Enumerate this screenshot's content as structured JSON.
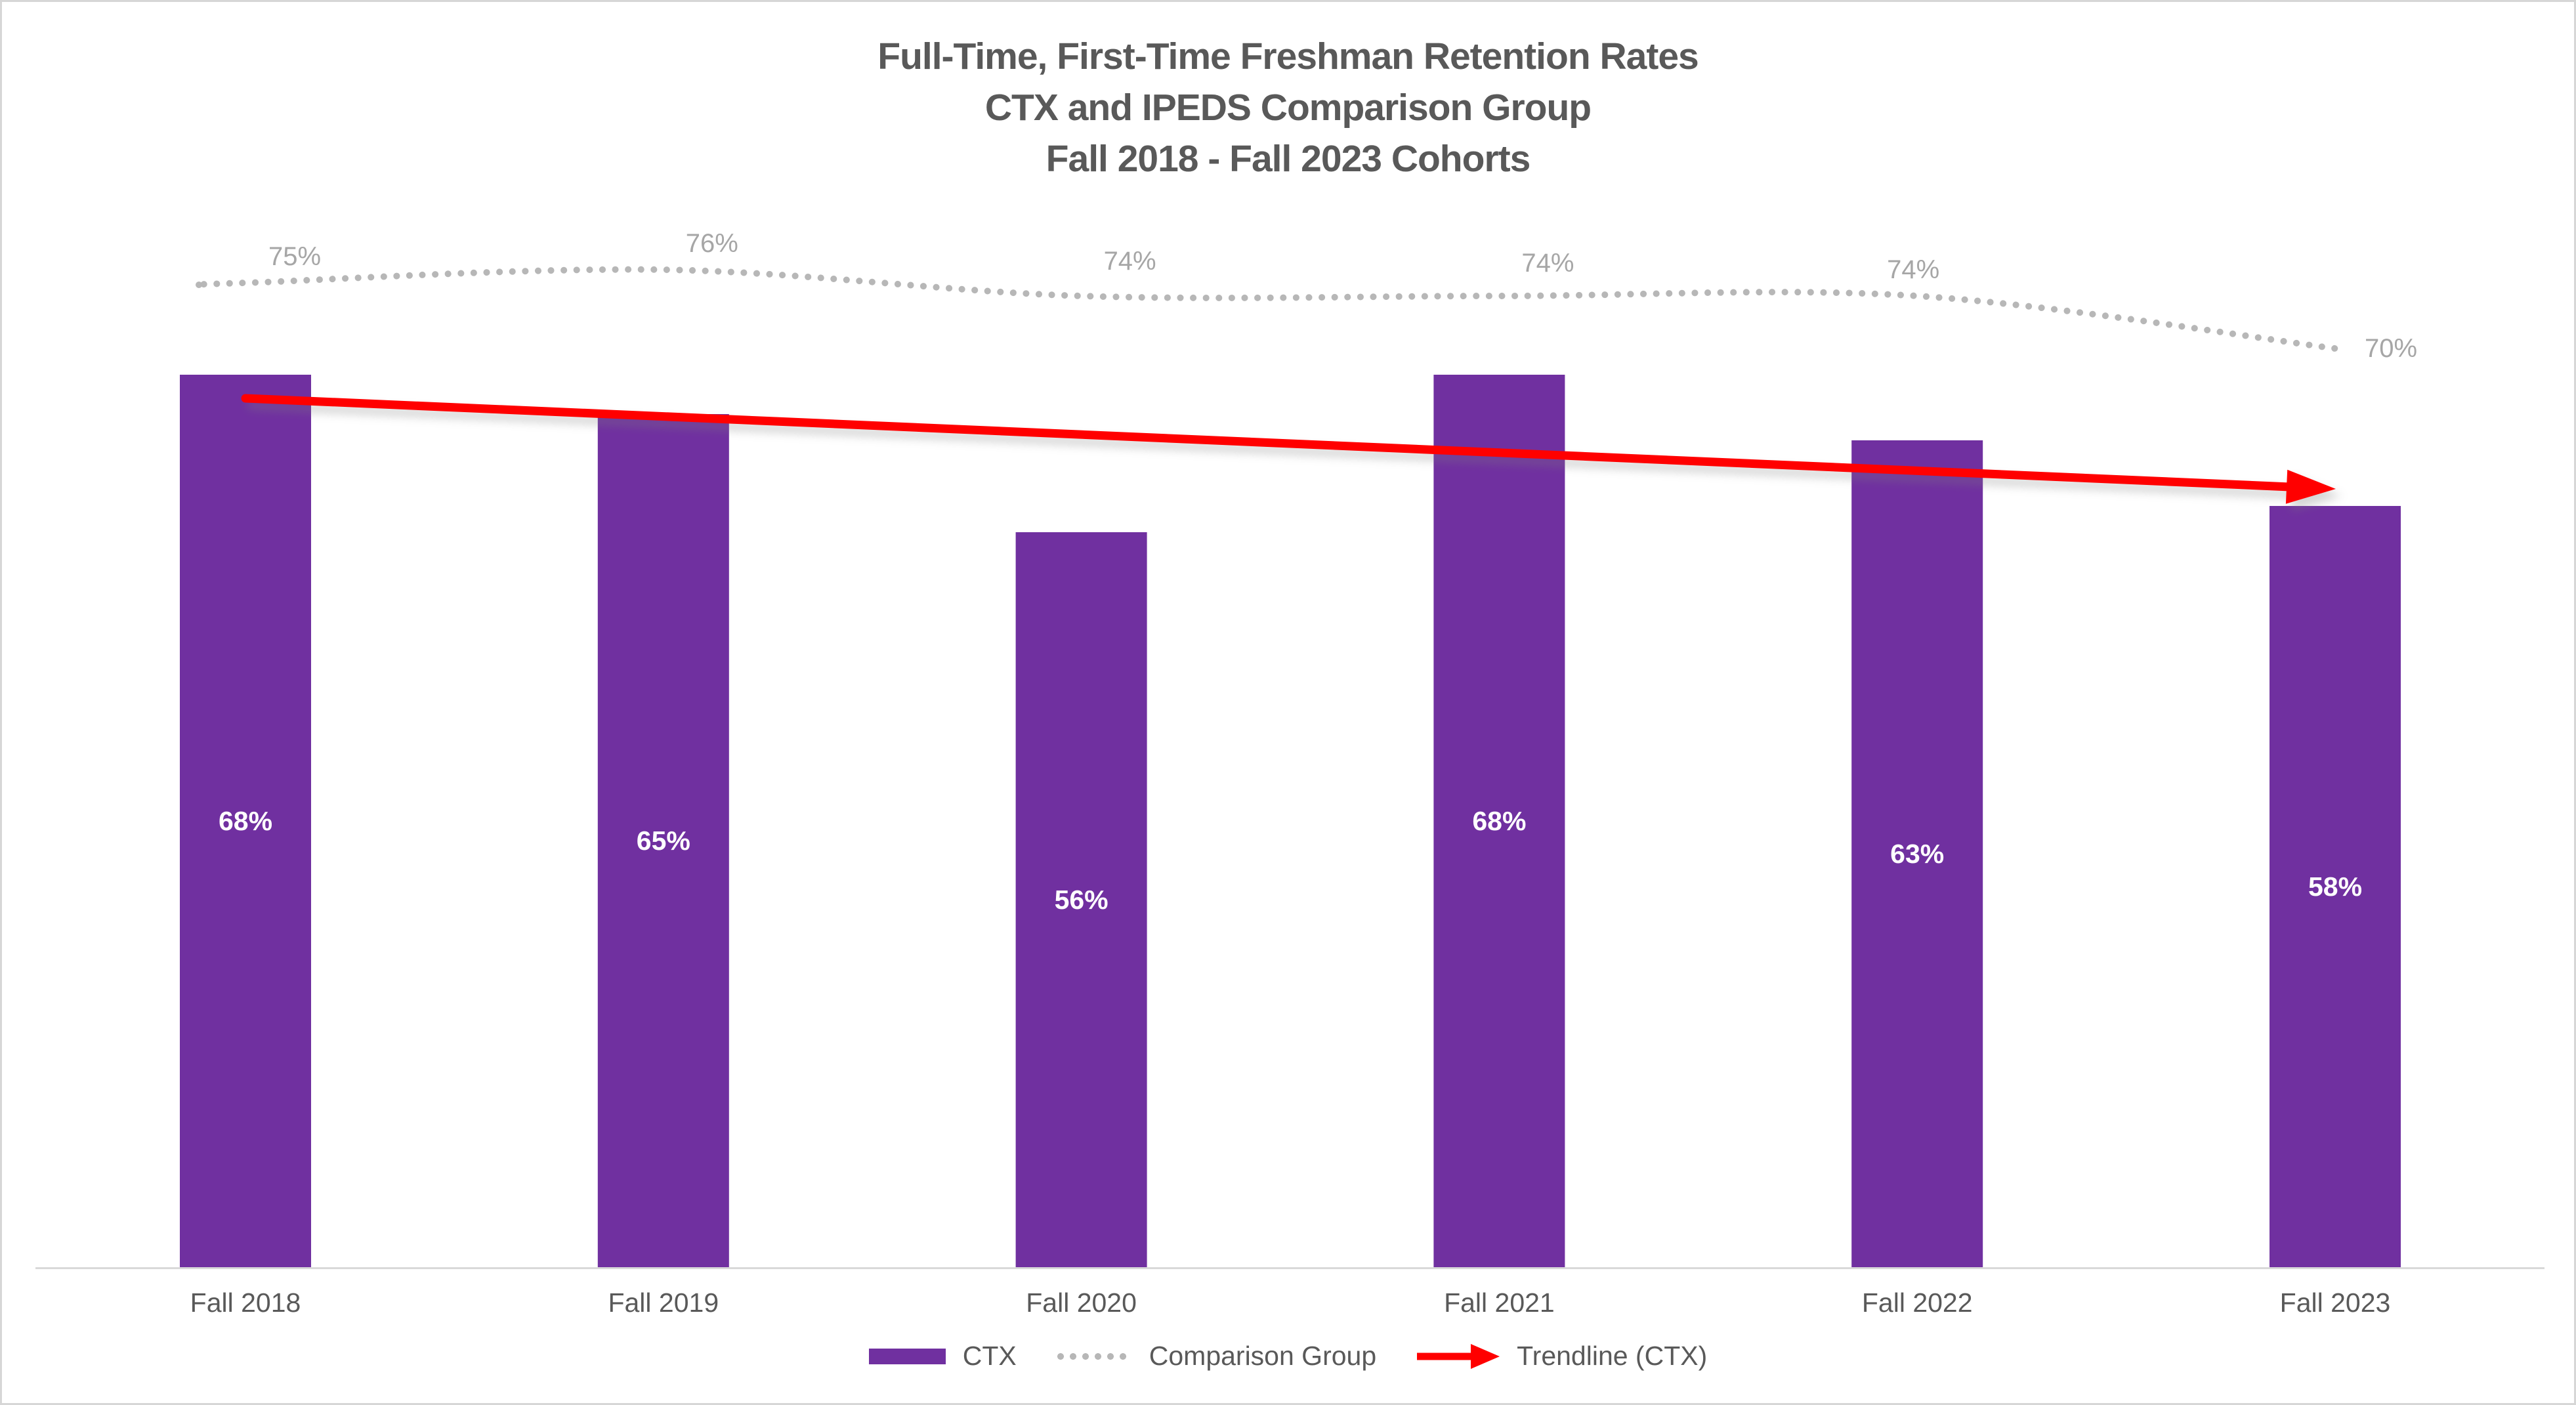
{
  "title": {
    "line1": "Full-Time, First-Time Freshman Retention Rates",
    "line2": "CTX and IPEDS Comparison Group",
    "line3": "Fall 2018 - Fall 2023 Cohorts"
  },
  "colors": {
    "title_text": "#595959",
    "axis_line": "#d9d9d9",
    "category_text": "#595959",
    "bar_label_text": "#ffffff",
    "comparison_label_text": "#a6a6a6",
    "frame_border": "#d6d6d6"
  },
  "chart_data": {
    "type": "bar",
    "title": "Full-Time, First-Time Freshman Retention Rates CTX and IPEDS Comparison Group Fall 2018 - Fall 2023 Cohorts",
    "categories": [
      "Fall 2018",
      "Fall 2019",
      "Fall 2020",
      "Fall 2021",
      "Fall 2022",
      "Fall 2023"
    ],
    "series": [
      {
        "name": "CTX",
        "type": "bar",
        "color": "#7030A0",
        "values": [
          68,
          65,
          56,
          68,
          63,
          58
        ],
        "labels": [
          "68%",
          "65%",
          "56%",
          "68%",
          "63%",
          "58%"
        ]
      },
      {
        "name": "Comparison Group",
        "type": "line",
        "style": "dotted",
        "color": "#b7b7b7",
        "values": [
          75,
          76,
          74,
          74,
          74,
          70
        ],
        "labels": [
          "75%",
          "76%",
          "74%",
          "74%",
          "74%",
          "70%"
        ]
      }
    ],
    "trendline": {
      "name": "Trendline (CTX)",
      "color": "#ff0000",
      "start_value": 66.2,
      "end_value": 59.9
    },
    "xlabel": "",
    "ylabel": "",
    "ylim": [
      0,
      100
    ],
    "grid": false,
    "y_axis_visible": false,
    "legend_position": "bottom"
  }
}
